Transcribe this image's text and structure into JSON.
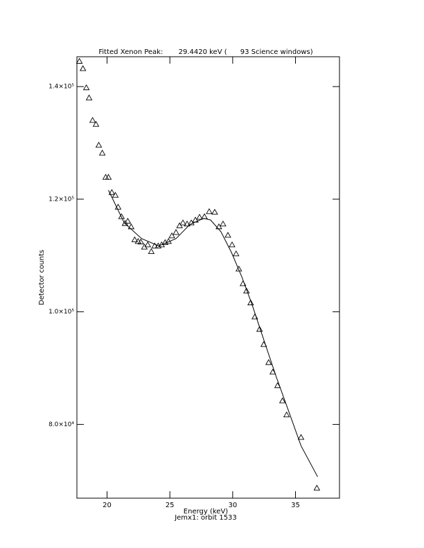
{
  "chart_data": {
    "type": "scatter",
    "title": "Fitted Xenon Peak:       29.4420 keV (      93 Science windows)",
    "x_label": "Energy (keV)",
    "subtitle": "Jemx1: orbit 1533",
    "y_label": "Detector counts",
    "xlim": [
      17.6,
      38.5
    ],
    "ylim": [
      66900,
      145300
    ],
    "xticks": [
      20,
      25,
      30,
      35
    ],
    "yticks": [
      {
        "value": 80000,
        "label": "8.0×10⁴"
      },
      {
        "value": 100000,
        "label": "1.0×10⁵"
      },
      {
        "value": 120000,
        "label": "1.2×10⁵"
      },
      {
        "value": 140000,
        "label": "1.4×10⁵"
      }
    ],
    "color": "#000000",
    "series": [
      {
        "style": "triangle",
        "x": [
          17.8,
          18.08,
          18.35,
          18.57,
          18.85,
          19.12,
          19.34,
          19.62,
          19.89,
          20.11,
          20.38,
          20.66,
          20.88,
          21.15,
          21.43,
          21.65,
          21.92,
          22.2,
          22.47,
          22.69,
          22.97,
          23.24,
          23.52,
          23.79,
          24.07,
          24.34,
          24.62,
          24.89,
          25.16,
          25.49,
          25.77,
          26.04,
          26.37,
          26.7,
          27.03,
          27.36,
          27.75,
          28.13,
          28.57,
          28.9,
          29.23,
          29.62,
          29.95,
          30.27,
          30.49,
          30.82,
          31.1,
          31.43,
          31.76,
          32.14,
          32.47,
          32.86,
          33.19,
          33.57,
          33.96,
          34.29,
          35.44,
          36.7
        ],
        "values": [
          144500,
          143200,
          139800,
          138000,
          134000,
          133300,
          129600,
          128200,
          123900,
          123900,
          121200,
          120700,
          118600,
          116900,
          115700,
          116100,
          115100,
          112800,
          112500,
          112400,
          111500,
          111900,
          110700,
          111700,
          111700,
          111900,
          112300,
          112500,
          113500,
          114100,
          115300,
          115800,
          115600,
          115800,
          116300,
          116800,
          116900,
          117800,
          117700,
          115100,
          115600,
          113600,
          111900,
          110300,
          107600,
          105000,
          103700,
          101600,
          99100,
          96900,
          94200,
          91000,
          89300,
          86900,
          84200,
          81700,
          77700,
          68700
        ]
      },
      {
        "style": "line",
        "x": [
          20.11,
          21.37,
          22.75,
          24.12,
          25.49,
          26.59,
          27.69,
          28.24,
          29.07,
          29.89,
          30.71,
          31.54,
          32.36,
          33.46,
          34.56,
          35.44,
          36.76
        ],
        "values": [
          121600,
          115800,
          113000,
          111700,
          113000,
          115500,
          116600,
          116300,
          114200,
          110600,
          106300,
          101300,
          95800,
          88500,
          81700,
          76200,
          70700
        ]
      }
    ]
  }
}
